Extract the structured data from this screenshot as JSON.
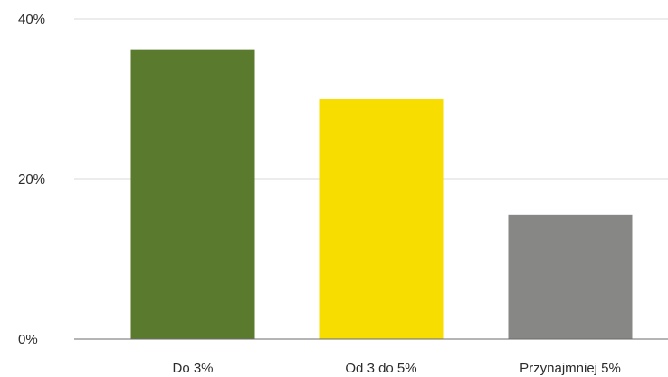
{
  "chart_data": {
    "type": "bar",
    "categories": [
      "Do 3%",
      "Od 3 do 5%",
      "Przynajmniej 5%"
    ],
    "values": [
      36.2,
      30.0,
      15.5
    ],
    "colors": [
      "#5a7a2e",
      "#f7dd00",
      "#878785"
    ],
    "ylim": [
      0,
      40
    ],
    "yticks": [
      0,
      20,
      40
    ],
    "ytick_labels": [
      "0%",
      "20%",
      "40%"
    ],
    "gridlines": [
      10,
      20,
      30,
      40
    ],
    "grid": true,
    "title": "",
    "xlabel": "",
    "ylabel": ""
  }
}
